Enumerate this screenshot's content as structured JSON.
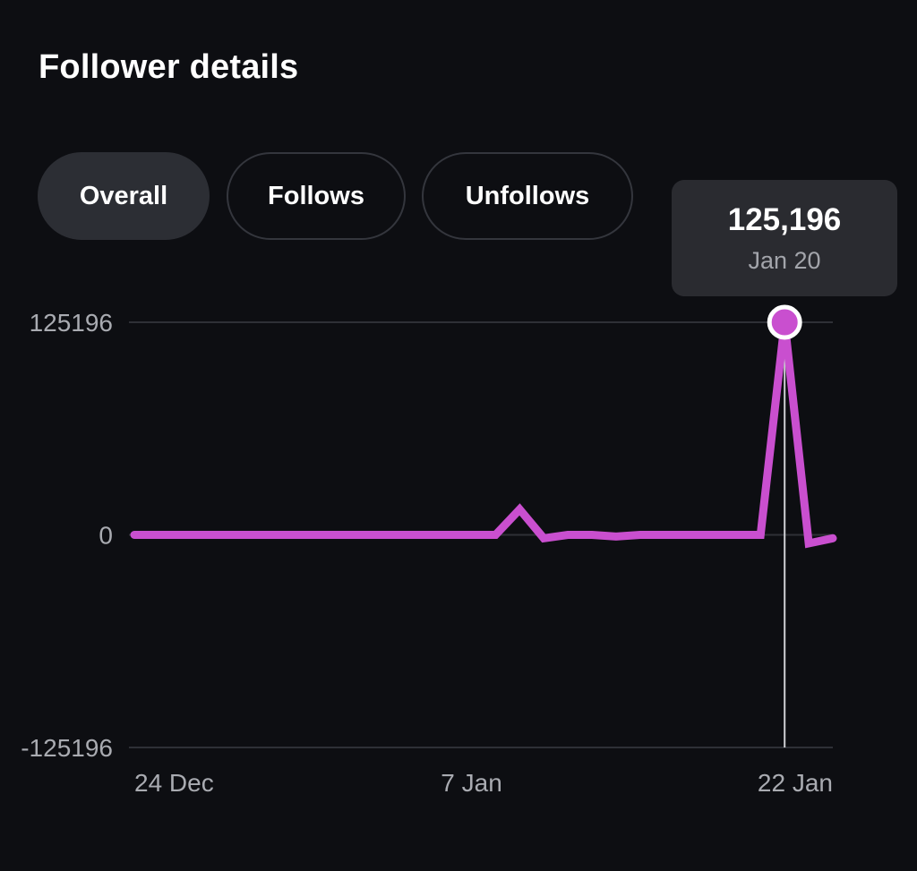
{
  "header": {
    "title": "Follower details"
  },
  "tabs": [
    {
      "label": "Overall",
      "active": true
    },
    {
      "label": "Follows",
      "active": false
    },
    {
      "label": "Unfollows",
      "active": false
    }
  ],
  "tooltip": {
    "value": "125,196",
    "date": "Jan 20"
  },
  "colors": {
    "line": "#c94fcf",
    "background": "#0d0e12",
    "gridline": "#2e3036",
    "tab_active_bg": "#2c2e34",
    "tooltip_bg": "#2a2b30"
  },
  "chart_data": {
    "type": "line",
    "title": "",
    "xlabel": "",
    "ylabel": "",
    "ylim": [
      -125196,
      125196
    ],
    "y_ticks": [
      "125196",
      "0",
      "-125196"
    ],
    "x_tick_labels": [
      {
        "date": "Dec 24",
        "label": "24 Dec"
      },
      {
        "date": "Jan 7",
        "label": "7 Jan"
      },
      {
        "date": "Jan 22",
        "label": "22 Jan"
      }
    ],
    "grid": true,
    "highlighted_point": {
      "x": "Jan 20",
      "y": 125196
    },
    "series": [
      {
        "x": [
          "Dec 24",
          "Dec 25",
          "Dec 26",
          "Dec 27",
          "Dec 28",
          "Dec 29",
          "Dec 30",
          "Dec 31",
          "Jan 1",
          "Jan 2",
          "Jan 3",
          "Jan 4",
          "Jan 5",
          "Jan 6",
          "Jan 7",
          "Jan 8",
          "Jan 9",
          "Jan 10",
          "Jan 11",
          "Jan 12",
          "Jan 13",
          "Jan 14",
          "Jan 15",
          "Jan 16",
          "Jan 17",
          "Jan 18",
          "Jan 19",
          "Jan 20",
          "Jan 21",
          "Jan 22"
        ],
        "y": [
          0,
          0,
          0,
          0,
          0,
          0,
          0,
          0,
          0,
          0,
          0,
          0,
          0,
          0,
          0,
          0,
          15000,
          -2000,
          0,
          0,
          -1000,
          0,
          0,
          0,
          0,
          0,
          0,
          125196,
          -5000,
          -2000
        ]
      }
    ]
  }
}
